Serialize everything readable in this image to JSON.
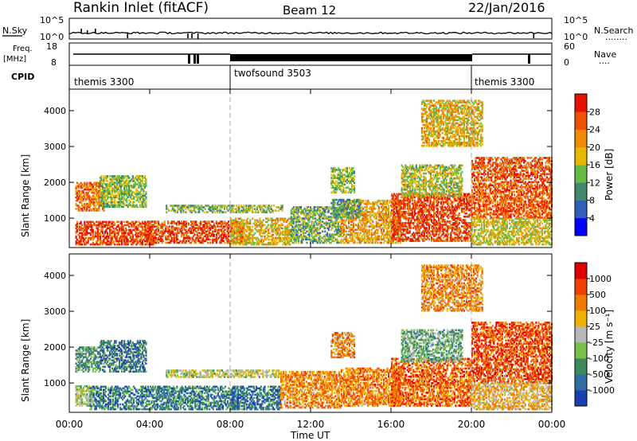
{
  "header": {
    "station": "Rankin Inlet (fitACF)",
    "beam": "Beam 12",
    "date": "22/Jan/2016"
  },
  "nsky_panel": {
    "left_label": "N.Sky",
    "left_ticks": [
      "10^5",
      "10^0"
    ],
    "right_label": "N.Search",
    "right_ticks": [
      "10^5",
      "10^0"
    ]
  },
  "freq_panel": {
    "left_label_line1": "Freq.",
    "left_label_line2": "[MHz]",
    "left_ticks": [
      "18",
      "8"
    ],
    "right_label": "Nave",
    "right_ticks": [
      "60",
      "0"
    ]
  },
  "cpid": {
    "label": "CPID",
    "segments": [
      {
        "name": "themis 3300",
        "start_hour": 0,
        "end_hour": 8
      },
      {
        "name": "twofsound 3503",
        "start_hour": 8,
        "end_hour": 20
      },
      {
        "name": "themis 3300",
        "start_hour": 20,
        "end_hour": 24
      }
    ]
  },
  "x_axis": {
    "label": "Time UT",
    "ticks": [
      "00:00",
      "04:00",
      "08:00",
      "12:00",
      "16:00",
      "20:00",
      "00:00"
    ]
  },
  "colors": {
    "power_scale": [
      "#0000ff",
      "#2f5fb8",
      "#3f8a6e",
      "#66bb44",
      "#e8b800",
      "#f08a00",
      "#f05000",
      "#e81000"
    ],
    "velocity_scale": [
      "#1a3fb0",
      "#2e6ea0",
      "#3c8a5a",
      "#78c04a",
      "#b8b8b8",
      "#f0b000",
      "#f07a00",
      "#f04000",
      "#e00000"
    ]
  },
  "chart_data": [
    {
      "type": "heatmap",
      "title": "",
      "xlabel": "",
      "ylabel": "Slant Range [km]",
      "xlim": [
        0,
        24
      ],
      "ylim": [
        180,
        4600
      ],
      "y_ticks": [
        "1000",
        "2000",
        "3000",
        "4000"
      ],
      "colorbar": {
        "label": "Power [dB]",
        "ticks": [
          "4",
          "8",
          "12",
          "16",
          "20",
          "24",
          "28"
        ],
        "range": [
          0,
          32
        ]
      },
      "mode": "power",
      "bands": [
        {
          "t0": 0.3,
          "t1": 4.2,
          "r0": 250,
          "r1": 900,
          "level": 0.85
        },
        {
          "t0": 0.3,
          "t1": 1.7,
          "r0": 1200,
          "r1": 2000,
          "level": 0.75
        },
        {
          "t0": 1.5,
          "t1": 3.8,
          "r0": 1300,
          "r1": 2200,
          "level": 0.45
        },
        {
          "t0": 3.8,
          "t1": 8.6,
          "r0": 300,
          "r1": 900,
          "level": 0.85
        },
        {
          "t0": 4.8,
          "t1": 10.6,
          "r0": 1150,
          "r1": 1350,
          "level": 0.45
        },
        {
          "t0": 8.0,
          "t1": 11.0,
          "r0": 250,
          "r1": 1000,
          "level": 0.6
        },
        {
          "t0": 11.0,
          "t1": 13.5,
          "r0": 300,
          "r1": 1300,
          "level": 0.4
        },
        {
          "t0": 13.5,
          "t1": 16.5,
          "r0": 300,
          "r1": 1500,
          "level": 0.65
        },
        {
          "t0": 13.0,
          "t1": 14.2,
          "r0": 1700,
          "r1": 2400,
          "level": 0.45
        },
        {
          "t0": 16.0,
          "t1": 20.0,
          "r0": 350,
          "r1": 1700,
          "level": 0.85
        },
        {
          "t0": 16.5,
          "t1": 19.5,
          "r0": 1600,
          "r1": 2500,
          "level": 0.5
        },
        {
          "t0": 20.0,
          "t1": 24.0,
          "r0": 1000,
          "r1": 2700,
          "level": 0.8
        },
        {
          "t0": 20.0,
          "t1": 24.0,
          "r0": 250,
          "r1": 1000,
          "level": 0.55
        },
        {
          "t0": 17.5,
          "t1": 20.5,
          "r0": 3000,
          "r1": 4300,
          "level": 0.6
        },
        {
          "t0": 13.0,
          "t1": 14.5,
          "r0": 1000,
          "r1": 1500,
          "level": 0.35
        }
      ]
    },
    {
      "type": "heatmap",
      "title": "",
      "xlabel": "Time UT",
      "ylabel": "Slant Range [km]",
      "xlim": [
        0,
        24
      ],
      "ylim": [
        180,
        4600
      ],
      "y_ticks": [
        "1000",
        "2000",
        "3000",
        "4000"
      ],
      "colorbar": {
        "label": "Velocity [m s⁻¹]",
        "ticks": [
          "1000",
          "500",
          "100",
          "25",
          "-25",
          "-100",
          "-500",
          "-1000"
        ],
        "range": [
          -1000,
          1000
        ]
      },
      "mode": "velocity",
      "bands": [
        {
          "t0": 0.3,
          "t1": 1.2,
          "r0": 350,
          "r1": 900,
          "level": 0.45
        },
        {
          "t0": 0.3,
          "t1": 1.5,
          "r0": 1300,
          "r1": 2000,
          "level": 0.3
        },
        {
          "t0": 1.5,
          "t1": 3.8,
          "r0": 1300,
          "r1": 2200,
          "level": 0.2
        },
        {
          "t0": 1.0,
          "t1": 8.2,
          "r0": 250,
          "r1": 900,
          "level": 0.22
        },
        {
          "t0": 4.8,
          "t1": 10.6,
          "r0": 1150,
          "r1": 1350,
          "level": 0.48
        },
        {
          "t0": 8.0,
          "t1": 10.5,
          "r0": 250,
          "r1": 900,
          "level": 0.2
        },
        {
          "t0": 10.5,
          "t1": 13.5,
          "r0": 300,
          "r1": 1300,
          "level": 0.7
        },
        {
          "t0": 13.5,
          "t1": 16.5,
          "r0": 350,
          "r1": 1400,
          "level": 0.72
        },
        {
          "t0": 13.0,
          "t1": 14.2,
          "r0": 1700,
          "r1": 2400,
          "level": 0.7
        },
        {
          "t0": 16.0,
          "t1": 20.0,
          "r0": 350,
          "r1": 1700,
          "level": 0.78
        },
        {
          "t0": 16.5,
          "t1": 19.5,
          "r0": 1600,
          "r1": 2500,
          "level": 0.35
        },
        {
          "t0": 20.0,
          "t1": 24.0,
          "r0": 1000,
          "r1": 2700,
          "level": 0.82
        },
        {
          "t0": 20.0,
          "t1": 24.0,
          "r0": 250,
          "r1": 1000,
          "level": 0.6
        },
        {
          "t0": 17.5,
          "t1": 20.5,
          "r0": 3000,
          "r1": 4300,
          "level": 0.7
        }
      ]
    }
  ]
}
